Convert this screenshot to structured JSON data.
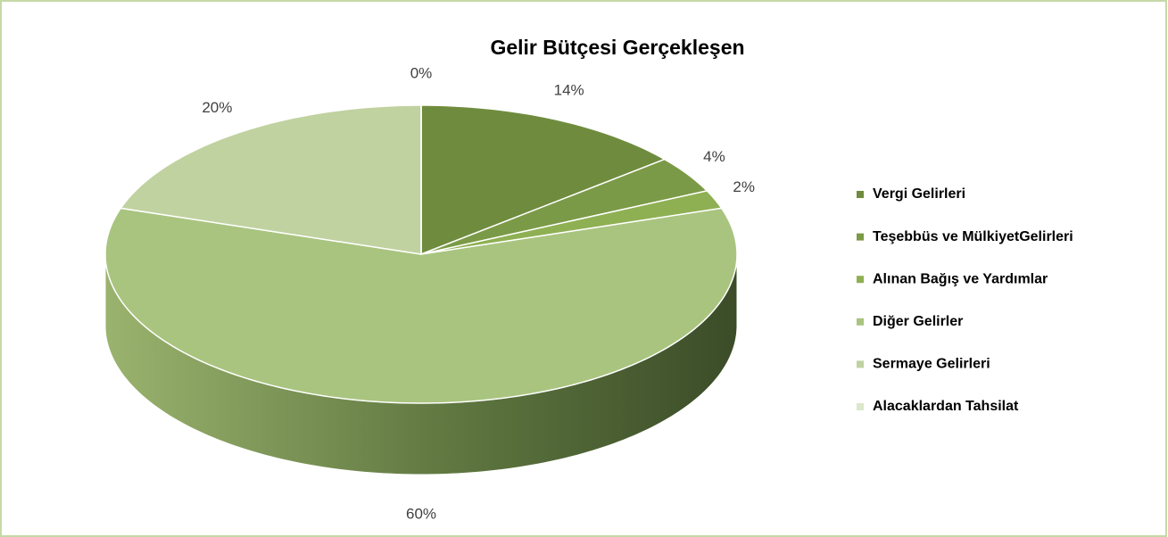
{
  "chart_data": {
    "type": "pie3d",
    "title": "Gelir Bütçesi Gerçekleşen",
    "categories": [
      "Vergi Gelirleri",
      "Teşebbüs ve MülkiyetGelirleri",
      "Alınan Bağış ve Yardımlar",
      "Diğer Gelirler",
      "Sermaye Gelirleri",
      "Alacaklardan Tahsilat"
    ],
    "values": [
      14,
      4,
      2,
      60,
      20,
      0
    ],
    "value_labels": [
      "14%",
      "4%",
      "2%",
      "60%",
      "20%",
      "0%"
    ],
    "colors": [
      "#6f8c3e",
      "#7b9a47",
      "#8eb053",
      "#a9c47f",
      "#c0d2a0",
      "#dce7cb"
    ],
    "legend": "right"
  }
}
